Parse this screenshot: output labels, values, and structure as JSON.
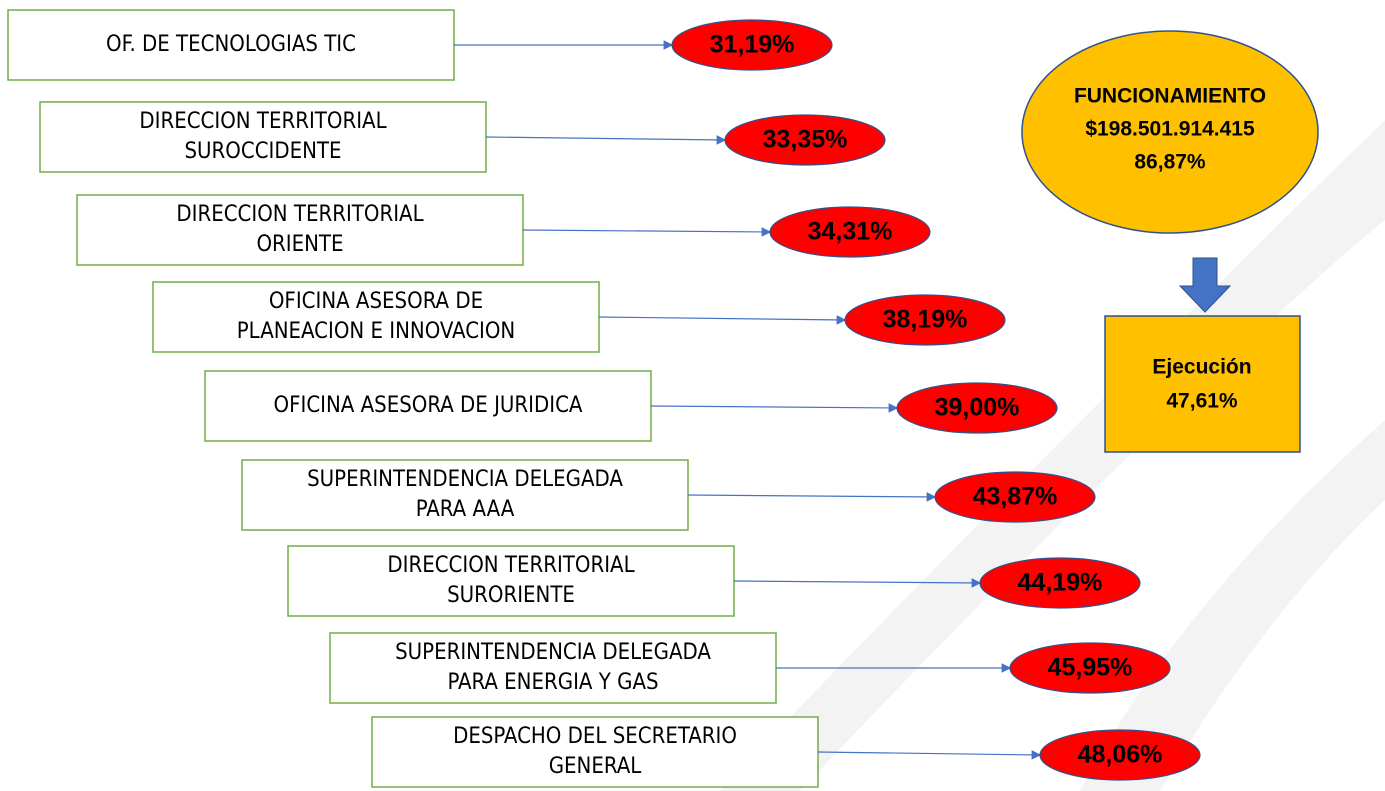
{
  "items": [
    {
      "label": [
        "OF. DE TECNOLOGIAS TIC"
      ],
      "value": "31,19%"
    },
    {
      "label": [
        "DIRECCION TERRITORIAL",
        "SUROCCIDENTE"
      ],
      "value": "33,35%"
    },
    {
      "label": [
        "DIRECCION TERRITORIAL",
        "ORIENTE"
      ],
      "value": "34,31%"
    },
    {
      "label": [
        "OFICINA ASESORA DE",
        "PLANEACION E INNOVACION"
      ],
      "value": "38,19%"
    },
    {
      "label": [
        "OFICINA ASESORA DE JURIDICA"
      ],
      "value": "39,00%"
    },
    {
      "label": [
        "SUPERINTENDENCIA DELEGADA",
        "PARA AAA"
      ],
      "value": "43,87%"
    },
    {
      "label": [
        "DIRECCION TERRITORIAL",
        "SURORIENTE"
      ],
      "value": "44,19%"
    },
    {
      "label": [
        "SUPERINTENDENCIA DELEGADA",
        "PARA ENERGIA Y GAS"
      ],
      "value": "45,95%"
    },
    {
      "label": [
        "DESPACHO DEL SECRETARIO",
        "GENERAL"
      ],
      "value": "48,06%"
    }
  ],
  "summary": {
    "title": "FUNCIONAMIENTO",
    "amount": "$198.501.914.415",
    "share": "86,87%"
  },
  "execution": {
    "label": "Ejecución",
    "value": "47,61%"
  }
}
